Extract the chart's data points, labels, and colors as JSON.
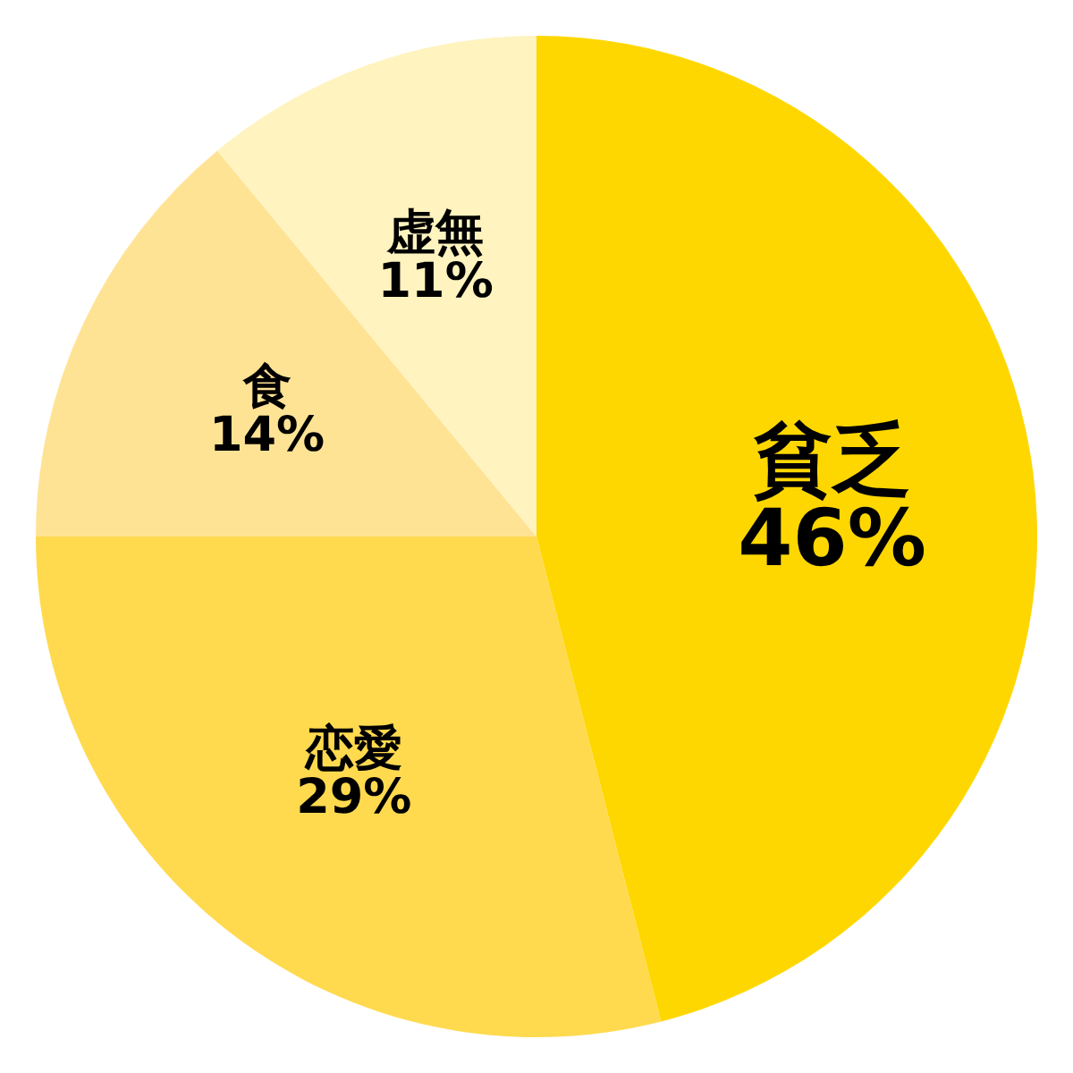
{
  "chart_data": {
    "type": "pie",
    "categories": [
      "貧乏",
      "恋愛",
      "食",
      "虚無"
    ],
    "values": [
      46,
      29,
      14,
      11
    ],
    "colors": [
      "#ffd700",
      "#ffda4f",
      "#ffe395",
      "#fff3bf"
    ],
    "value_labels": [
      "46%",
      "29%",
      "14%",
      "11%"
    ]
  }
}
